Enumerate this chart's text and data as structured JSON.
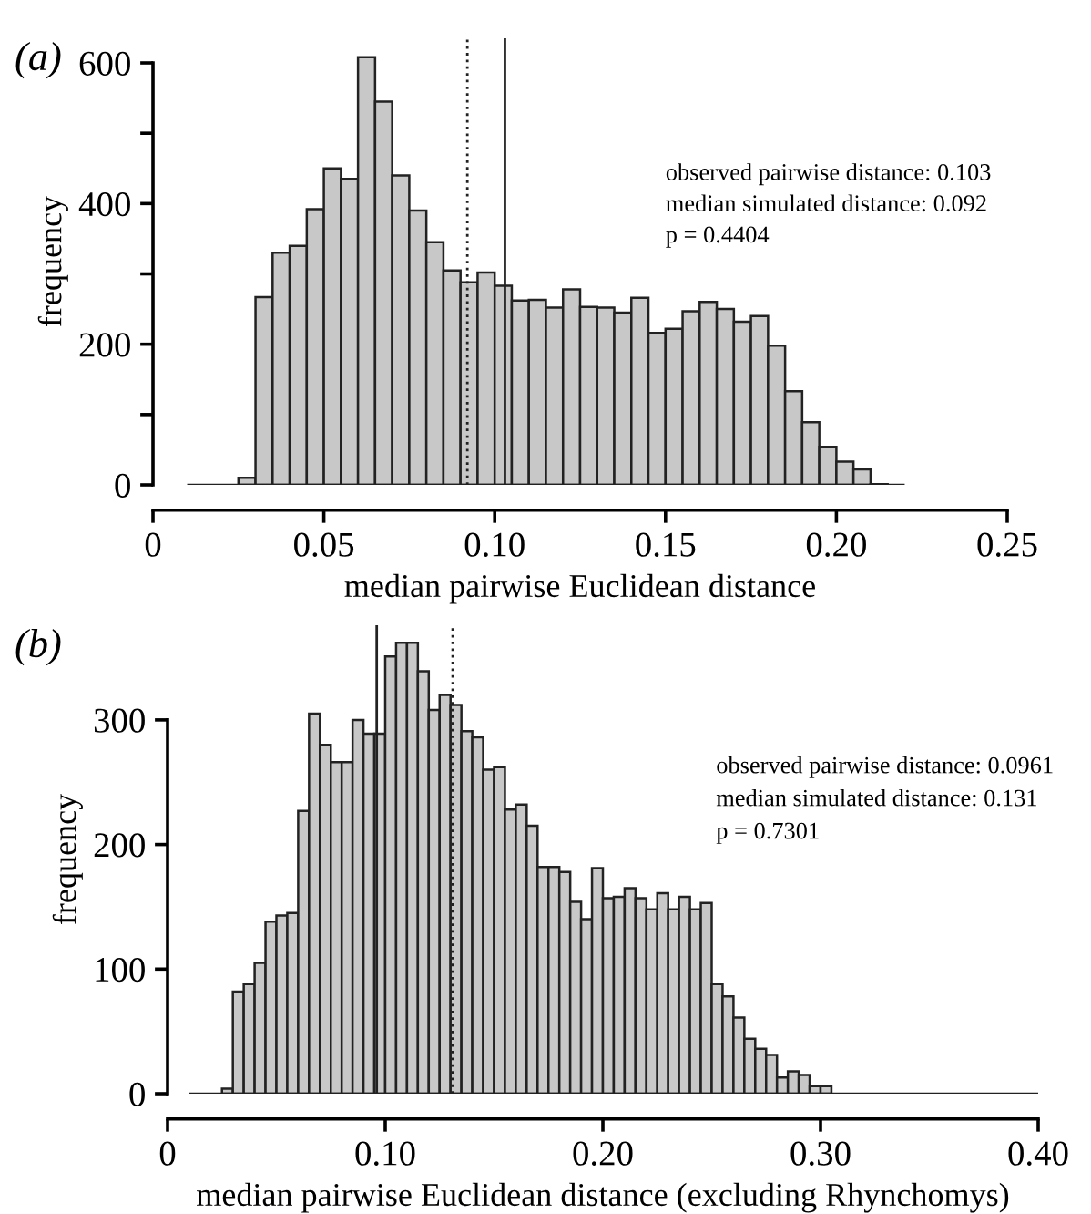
{
  "chart_data": [
    {
      "type": "histogram",
      "xlabel": "median pairwise Euclidean distance",
      "ylabel": "frequency",
      "color": "#c8c8c8",
      "bins": [
        0.01,
        0.015,
        0.02,
        0.025,
        0.03,
        0.035,
        0.04,
        0.045,
        0.05,
        0.055,
        0.06,
        0.065,
        0.07,
        0.075,
        0.08,
        0.085,
        0.09,
        0.095,
        0.1,
        0.105,
        0.11,
        0.115,
        0.12,
        0.125,
        0.13,
        0.135,
        0.14,
        0.145,
        0.15,
        0.155,
        0.16,
        0.165,
        0.17,
        0.175,
        0.18,
        0.185,
        0.19,
        0.195,
        0.2,
        0.205,
        0.21,
        0.215,
        0.22
      ],
      "values": [
        0,
        0,
        0,
        10,
        267,
        330,
        340,
        392,
        450,
        435,
        608,
        545,
        440,
        390,
        345,
        305,
        288,
        302,
        283,
        262,
        263,
        252,
        278,
        253,
        252,
        245,
        266,
        216,
        222,
        247,
        260,
        250,
        232,
        240,
        198,
        133,
        89,
        54,
        33,
        22,
        1,
        0
      ],
      "xlim": [
        0,
        0.25
      ],
      "xticks": [
        0,
        0.05,
        {
          "value": 0.1,
          "label": "0.10"
        },
        0.15,
        {
          "value": 0.2,
          "label": "0.20"
        },
        0.25
      ],
      "ylim": [
        0,
        635
      ],
      "yticks": [
        0,
        {
          "value": 100,
          "label": null
        },
        200,
        {
          "value": 300,
          "label": null
        },
        400,
        {
          "value": 500,
          "label": null
        },
        600
      ],
      "ref_lines": [
        {
          "axis": "x",
          "value": 0.092,
          "line_style": "dotted"
        },
        {
          "axis": "x",
          "value": 0.103,
          "line_style": "solid"
        }
      ],
      "annotations": [
        "(a)",
        "observed pairwise distance: 0.103",
        "median simulated distance: 0.092",
        "p = 0.4404"
      ]
    },
    {
      "type": "histogram",
      "xlabel": "median pairwise Euclidean distance (excluding Rhynchomys)",
      "ylabel": "frequency",
      "color": "#c8c8c8",
      "bins": [
        0.01,
        0.015,
        0.02,
        0.025,
        0.03,
        0.035,
        0.04,
        0.045,
        0.05,
        0.055,
        0.06,
        0.065,
        0.07,
        0.075,
        0.08,
        0.085,
        0.09,
        0.095,
        0.1,
        0.105,
        0.11,
        0.115,
        0.12,
        0.125,
        0.13,
        0.135,
        0.14,
        0.145,
        0.15,
        0.155,
        0.16,
        0.165,
        0.17,
        0.175,
        0.18,
        0.185,
        0.19,
        0.195,
        0.2,
        0.205,
        0.21,
        0.215,
        0.22,
        0.225,
        0.23,
        0.235,
        0.24,
        0.245,
        0.25,
        0.255,
        0.26,
        0.265,
        0.27,
        0.275,
        0.28,
        0.285,
        0.29,
        0.295,
        0.3,
        0.305,
        0.31,
        0.315,
        0.32,
        0.325,
        0.33,
        0.335,
        0.34,
        0.345,
        0.35,
        0.355,
        0.36,
        0.365,
        0.37,
        0.375,
        0.38,
        0.385,
        0.39,
        0.395,
        0.4
      ],
      "values": [
        0,
        0,
        0,
        4,
        82,
        88,
        105,
        138,
        143,
        145,
        227,
        305,
        280,
        266,
        266,
        300,
        289,
        289,
        351,
        362,
        362,
        339,
        308,
        320,
        312,
        291,
        286,
        260,
        262,
        228,
        232,
        215,
        182,
        182,
        178,
        154,
        140,
        181,
        157,
        158,
        165,
        157,
        148,
        161,
        148,
        158,
        148,
        153,
        88,
        78,
        61,
        44,
        36,
        31,
        13,
        18,
        15,
        6,
        6,
        0,
        0,
        0,
        0,
        0,
        0,
        0,
        0,
        0,
        0,
        0,
        0,
        0,
        0,
        0,
        0,
        0,
        0,
        0
      ],
      "xlim": [
        0,
        0.4
      ],
      "xticks": [
        0,
        {
          "value": 0.1,
          "label": "0.10"
        },
        {
          "value": 0.2,
          "label": "0.20"
        },
        {
          "value": 0.3,
          "label": "0.30"
        },
        {
          "value": 0.4,
          "label": "0.40"
        }
      ],
      "ylim": [
        0,
        376
      ],
      "yticks": [
        0,
        100,
        200,
        300
      ],
      "ref_lines": [
        {
          "axis": "x",
          "value": 0.0961,
          "line_style": "solid"
        },
        {
          "axis": "x",
          "value": 0.131,
          "line_style": "dotted"
        }
      ],
      "annotations": [
        "(b)",
        "observed pairwise distance: 0.0961",
        "median simulated distance: 0.131",
        "p = 0.7301"
      ]
    }
  ]
}
